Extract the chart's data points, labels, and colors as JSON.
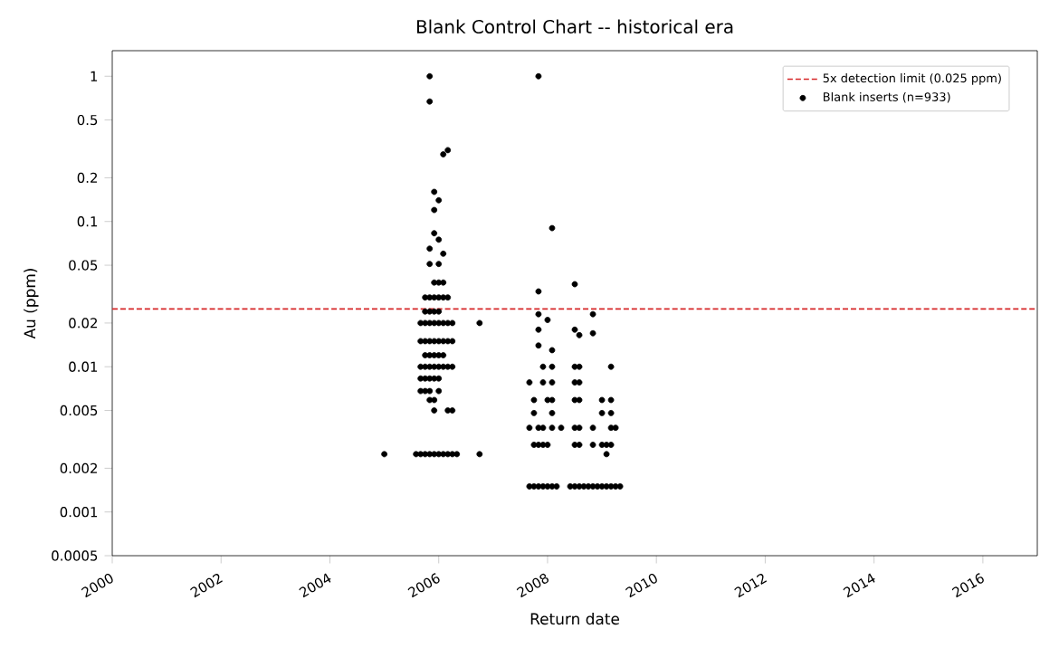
{
  "chart_data": {
    "type": "scatter",
    "title": "Blank Control Chart -- historical era",
    "xlabel": "Return date",
    "ylabel": "Au (ppm)",
    "log": "y",
    "grid": false,
    "legend": "top right",
    "xlim": [
      "2000",
      "2017"
    ],
    "xticks": [
      "2000",
      "2002",
      "2004",
      "2006",
      "2008",
      "2010",
      "2012",
      "2014",
      "2016"
    ],
    "ylim": [
      0.0005,
      1.5
    ],
    "yticks": [
      0.0005,
      0.001,
      0.002,
      0.005,
      0.01,
      0.02,
      0.05,
      0.1,
      0.2,
      0.5,
      1
    ],
    "ref_lines": [
      {
        "axis": "y",
        "value": 0.025,
        "label": "5x detection limit (0.025 ppm)",
        "color": "#d62728",
        "line_style": "dashed"
      }
    ],
    "series": [
      {
        "name": "Blank inserts (n=933)",
        "color": "#000000",
        "x": [
          "2005-01",
          "2005-08",
          "2005-09",
          "2005-10",
          "2005-11",
          "2005-12",
          "2006-01",
          "2006-02",
          "2006-03",
          "2006-04",
          "2006-05",
          "2006-10",
          "2006-10",
          "2005-11",
          "2005-11",
          "2006-02",
          "2006-03",
          "2005-12",
          "2006-01",
          "2005-12",
          "2005-12",
          "2006-01",
          "2005-11",
          "2006-02",
          "2005-11",
          "2006-01",
          "2005-12",
          "2006-01",
          "2006-02",
          "2005-10",
          "2005-11",
          "2005-12",
          "2006-01",
          "2006-02",
          "2006-03",
          "2005-10",
          "2005-11",
          "2005-12",
          "2006-01",
          "2005-09",
          "2005-10",
          "2005-11",
          "2005-12",
          "2006-01",
          "2006-02",
          "2006-03",
          "2006-04",
          "2005-09",
          "2005-10",
          "2005-11",
          "2005-12",
          "2006-01",
          "2006-02",
          "2006-03",
          "2006-04",
          "2005-10",
          "2005-11",
          "2005-12",
          "2006-01",
          "2006-02",
          "2005-09",
          "2005-10",
          "2005-11",
          "2005-12",
          "2006-01",
          "2006-02",
          "2006-03",
          "2006-04",
          "2005-09",
          "2005-10",
          "2005-11",
          "2005-12",
          "2006-01",
          "2005-09",
          "2005-10",
          "2005-11",
          "2006-01",
          "2005-11",
          "2005-12",
          "2005-12",
          "2006-03",
          "2006-04",
          "2007-11",
          "2008-02",
          "2007-11",
          "2008-07",
          "2007-11",
          "2008-11",
          "2007-11",
          "2008-01",
          "2007-11",
          "2008-07",
          "2008-08",
          "2008-11",
          "2008-02",
          "2007-12",
          "2008-02",
          "2008-07",
          "2008-08",
          "2009-03",
          "2007-09",
          "2007-12",
          "2008-02",
          "2008-07",
          "2008-08",
          "2007-10",
          "2008-01",
          "2008-02",
          "2008-07",
          "2008-08",
          "2009-01",
          "2009-03",
          "2007-10",
          "2008-02",
          "2009-01",
          "2009-03",
          "2007-09",
          "2007-11",
          "2007-12",
          "2008-02",
          "2008-04",
          "2008-07",
          "2008-08",
          "2008-11",
          "2009-03",
          "2009-04",
          "2007-10",
          "2007-11",
          "2007-12",
          "2008-01",
          "2008-07",
          "2008-08",
          "2008-11",
          "2009-01",
          "2009-02",
          "2009-03",
          "2009-02",
          "2007-09",
          "2007-10",
          "2007-11",
          "2007-12",
          "2008-01",
          "2008-02",
          "2008-03",
          "2008-06",
          "2008-07",
          "2008-08",
          "2008-09",
          "2008-10",
          "2008-11",
          "2008-12",
          "2009-01",
          "2009-02",
          "2009-03",
          "2009-04",
          "2009-05"
        ],
        "values": [
          0.0025,
          0.0025,
          0.0025,
          0.0025,
          0.0025,
          0.0025,
          0.0025,
          0.0025,
          0.0025,
          0.0025,
          0.0025,
          0.0025,
          0.02,
          1.0,
          0.67,
          0.29,
          0.31,
          0.16,
          0.14,
          0.12,
          0.083,
          0.075,
          0.065,
          0.06,
          0.051,
          0.051,
          0.038,
          0.038,
          0.038,
          0.03,
          0.03,
          0.03,
          0.03,
          0.03,
          0.03,
          0.024,
          0.024,
          0.024,
          0.024,
          0.02,
          0.02,
          0.02,
          0.02,
          0.02,
          0.02,
          0.02,
          0.02,
          0.015,
          0.015,
          0.015,
          0.015,
          0.015,
          0.015,
          0.015,
          0.015,
          0.012,
          0.012,
          0.012,
          0.012,
          0.012,
          0.01,
          0.01,
          0.01,
          0.01,
          0.01,
          0.01,
          0.01,
          0.01,
          0.0083,
          0.0083,
          0.0083,
          0.0083,
          0.0083,
          0.0068,
          0.0068,
          0.0068,
          0.0068,
          0.0059,
          0.0059,
          0.005,
          0.005,
          0.005,
          1.0,
          0.09,
          0.033,
          0.037,
          0.023,
          0.023,
          0.018,
          0.021,
          0.014,
          0.018,
          0.0165,
          0.017,
          0.013,
          0.01,
          0.01,
          0.01,
          0.01,
          0.01,
          0.0078,
          0.0078,
          0.0078,
          0.0078,
          0.0078,
          0.0059,
          0.0059,
          0.0059,
          0.0059,
          0.0059,
          0.0059,
          0.0059,
          0.0048,
          0.0048,
          0.0048,
          0.0048,
          0.0038,
          0.0038,
          0.0038,
          0.0038,
          0.0038,
          0.0038,
          0.0038,
          0.0038,
          0.0038,
          0.0038,
          0.0029,
          0.0029,
          0.0029,
          0.0029,
          0.0029,
          0.0029,
          0.0029,
          0.0029,
          0.0029,
          0.0029,
          0.0025,
          0.0015,
          0.0015,
          0.0015,
          0.0015,
          0.0015,
          0.0015,
          0.0015,
          0.0015,
          0.0015,
          0.0015,
          0.0015,
          0.0015,
          0.0015,
          0.0015,
          0.0015,
          0.0015,
          0.0015,
          0.0015,
          0.0015
        ]
      }
    ]
  }
}
